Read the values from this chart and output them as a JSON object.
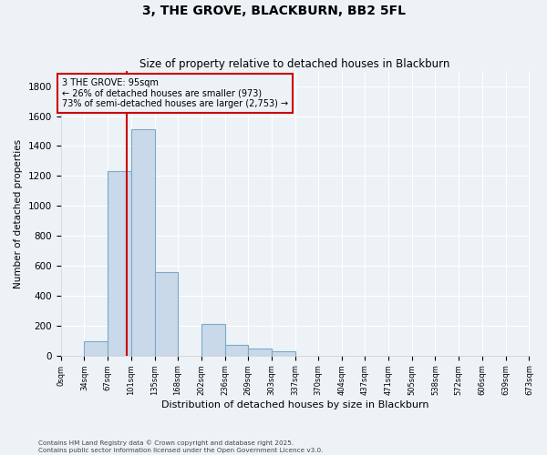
{
  "title": "3, THE GROVE, BLACKBURN, BB2 5FL",
  "subtitle": "Size of property relative to detached houses in Blackburn",
  "xlabel": "Distribution of detached houses by size in Blackburn",
  "ylabel": "Number of detached properties",
  "bar_color": "#c9d9ea",
  "bar_edge_color": "#7aaac8",
  "annotation_text": "3 THE GROVE: 95sqm\n← 26% of detached houses are smaller (973)\n73% of semi-detached houses are larger (2,753) →",
  "annotation_color": "#cc0000",
  "property_line_x": 95,
  "property_line_color": "#cc0000",
  "bins": [
    0,
    34,
    67,
    101,
    135,
    168,
    202,
    236,
    269,
    303,
    337,
    370,
    404,
    437,
    471,
    505,
    538,
    572,
    606,
    639,
    673
  ],
  "counts": [
    0,
    95,
    1230,
    1510,
    560,
    0,
    210,
    70,
    45,
    30,
    0,
    0,
    0,
    0,
    0,
    0,
    0,
    0,
    0,
    0
  ],
  "ylim": [
    0,
    1900
  ],
  "yticks": [
    0,
    200,
    400,
    600,
    800,
    1000,
    1200,
    1400,
    1600,
    1800
  ],
  "background_color": "#edf2f7",
  "grid_color": "#ffffff",
  "footer": "Contains HM Land Registry data © Crown copyright and database right 2025.\nContains public sector information licensed under the Open Government Licence v3.0."
}
